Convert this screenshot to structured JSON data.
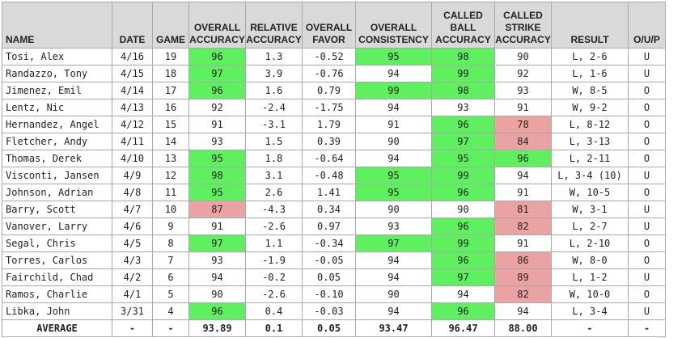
{
  "headers": {
    "name": "NAME",
    "date": "DATE",
    "game": "GAME",
    "overall_accuracy": [
      "OVERALL",
      "ACCURACY"
    ],
    "relative_accuracy": [
      "RELATIVE",
      "ACCURACY"
    ],
    "overall_favor": [
      "OVERALL",
      "FAVOR"
    ],
    "overall_consistency": [
      "OVERALL",
      "CONSISTENCY"
    ],
    "called_ball_accuracy": [
      "CALLED",
      "BALL",
      "ACCURACY"
    ],
    "called_strike_accuracy": [
      "CALLED",
      "STRIKE",
      "ACCURACY"
    ],
    "result": "RESULT",
    "oup": "O/U/P"
  },
  "colors": {
    "good": "#5ef05e",
    "bad": "#eaa2a2",
    "header": "#d9d9d9"
  },
  "rows": [
    {
      "name": "Tosi, Alex",
      "date": "4/16",
      "game": "19",
      "oa": "96",
      "oa_h": "good",
      "ra": "1.3",
      "of": "-0.52",
      "oc": "95",
      "oc_h": "good",
      "ba": "98",
      "ba_h": "good",
      "sa": "90",
      "sa_h": "",
      "result": "L, 2-6",
      "oup": "U"
    },
    {
      "name": "Randazzo, Tony",
      "date": "4/15",
      "game": "18",
      "oa": "97",
      "oa_h": "good",
      "ra": "3.9",
      "of": "-0.76",
      "oc": "94",
      "oc_h": "",
      "ba": "99",
      "ba_h": "good",
      "sa": "92",
      "sa_h": "",
      "result": "L, 1-6",
      "oup": "U"
    },
    {
      "name": "Jimenez, Emil",
      "date": "4/14",
      "game": "17",
      "oa": "96",
      "oa_h": "good",
      "ra": "1.6",
      "of": "0.79",
      "oc": "99",
      "oc_h": "good",
      "ba": "98",
      "ba_h": "good",
      "sa": "93",
      "sa_h": "",
      "result": "W, 8-5",
      "oup": "O"
    },
    {
      "name": "Lentz, Nic",
      "date": "4/13",
      "game": "16",
      "oa": "92",
      "oa_h": "",
      "ra": "-2.4",
      "of": "-1.75",
      "oc": "94",
      "oc_h": "",
      "ba": "93",
      "ba_h": "",
      "sa": "91",
      "sa_h": "",
      "result": "W, 9-2",
      "oup": "O"
    },
    {
      "name": "Hernandez, Angel",
      "date": "4/12",
      "game": "15",
      "oa": "91",
      "oa_h": "",
      "ra": "-3.1",
      "of": "1.79",
      "oc": "91",
      "oc_h": "",
      "ba": "96",
      "ba_h": "good",
      "sa": "78",
      "sa_h": "bad",
      "result": "L, 8-12",
      "oup": "O"
    },
    {
      "name": "Fletcher, Andy",
      "date": "4/11",
      "game": "14",
      "oa": "93",
      "oa_h": "",
      "ra": "1.5",
      "of": "0.39",
      "oc": "90",
      "oc_h": "",
      "ba": "97",
      "ba_h": "good",
      "sa": "84",
      "sa_h": "bad",
      "result": "L, 3-13",
      "oup": "O"
    },
    {
      "name": "Thomas, Derek",
      "date": "4/10",
      "game": "13",
      "oa": "95",
      "oa_h": "good",
      "ra": "1.8",
      "of": "-0.64",
      "oc": "94",
      "oc_h": "",
      "ba": "95",
      "ba_h": "good",
      "sa": "96",
      "sa_h": "good",
      "result": "L, 2-11",
      "oup": "O"
    },
    {
      "name": "Visconti, Jansen",
      "date": "4/9",
      "game": "12",
      "oa": "98",
      "oa_h": "good",
      "ra": "3.1",
      "of": "-0.48",
      "oc": "95",
      "oc_h": "good",
      "ba": "99",
      "ba_h": "good",
      "sa": "94",
      "sa_h": "",
      "result": "L, 3-4 (10)",
      "oup": "U"
    },
    {
      "name": "Johnson, Adrian",
      "date": "4/8",
      "game": "11",
      "oa": "95",
      "oa_h": "good",
      "ra": "2.6",
      "of": "1.41",
      "oc": "95",
      "oc_h": "good",
      "ba": "96",
      "ba_h": "good",
      "sa": "91",
      "sa_h": "",
      "result": "W, 10-5",
      "oup": "O"
    },
    {
      "name": "Barry, Scott",
      "date": "4/7",
      "game": "10",
      "oa": "87",
      "oa_h": "bad",
      "ra": "-4.3",
      "of": "0.34",
      "oc": "90",
      "oc_h": "",
      "ba": "90",
      "ba_h": "",
      "sa": "81",
      "sa_h": "bad",
      "result": "W, 3-1",
      "oup": "U"
    },
    {
      "name": "Vanover, Larry",
      "date": "4/6",
      "game": "9",
      "oa": "91",
      "oa_h": "",
      "ra": "-2.6",
      "of": "0.97",
      "oc": "93",
      "oc_h": "",
      "ba": "96",
      "ba_h": "good",
      "sa": "82",
      "sa_h": "bad",
      "result": "L, 2-7",
      "oup": "U"
    },
    {
      "name": "Segal, Chris",
      "date": "4/5",
      "game": "8",
      "oa": "97",
      "oa_h": "good",
      "ra": "1.1",
      "of": "-0.34",
      "oc": "97",
      "oc_h": "good",
      "ba": "99",
      "ba_h": "good",
      "sa": "91",
      "sa_h": "",
      "result": "L, 2-10",
      "oup": "O"
    },
    {
      "name": "Torres, Carlos",
      "date": "4/3",
      "game": "7",
      "oa": "93",
      "oa_h": "",
      "ra": "-1.9",
      "of": "-0.05",
      "oc": "94",
      "oc_h": "",
      "ba": "96",
      "ba_h": "good",
      "sa": "86",
      "sa_h": "bad",
      "result": "W, 8-0",
      "oup": "O"
    },
    {
      "name": "Fairchild, Chad",
      "date": "4/2",
      "game": "6",
      "oa": "94",
      "oa_h": "",
      "ra": "-0.2",
      "of": "0.05",
      "oc": "94",
      "oc_h": "",
      "ba": "97",
      "ba_h": "good",
      "sa": "89",
      "sa_h": "bad",
      "result": "L, 1-2",
      "oup": "U"
    },
    {
      "name": "Ramos, Charlie",
      "date": "4/1",
      "game": "5",
      "oa": "90",
      "oa_h": "",
      "ra": "-2.6",
      "of": "-0.10",
      "oc": "90",
      "oc_h": "",
      "ba": "94",
      "ba_h": "",
      "sa": "82",
      "sa_h": "bad",
      "result": "W, 10-0",
      "oup": "O"
    },
    {
      "name": "Libka, John",
      "date": "3/31",
      "game": "4",
      "oa": "96",
      "oa_h": "good",
      "ra": "0.4",
      "of": "-0.03",
      "oc": "94",
      "oc_h": "",
      "ba": "96",
      "ba_h": "good",
      "sa": "94",
      "sa_h": "",
      "result": "L, 3-4",
      "oup": "U"
    }
  ],
  "average": {
    "label": "AVERAGE",
    "date": "-",
    "game": "-",
    "oa": "93.89",
    "ra": "0.1",
    "of": "0.05",
    "oc": "93.47",
    "ba": "96.47",
    "sa": "88.00",
    "result": "-",
    "oup": "-"
  }
}
